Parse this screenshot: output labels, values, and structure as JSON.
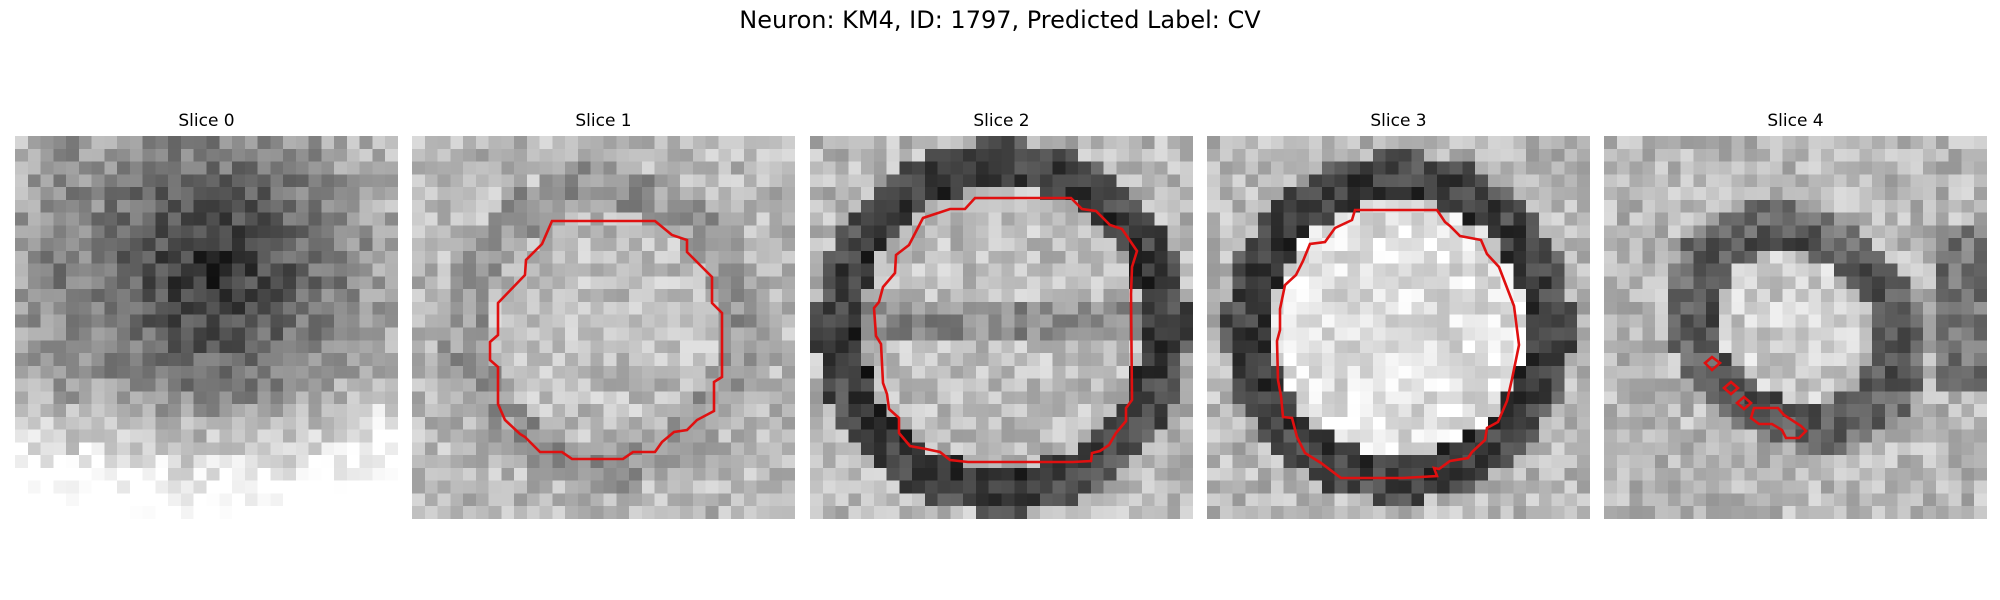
{
  "figure": {
    "title": "Neuron: KM4, ID: 1797, Predicted Label: CV"
  },
  "panels": [
    {
      "title": "Slice 0",
      "contour": false
    },
    {
      "title": "Slice 1",
      "contour": true
    },
    {
      "title": "Slice 2",
      "contour": true
    },
    {
      "title": "Slice 3",
      "contour": true
    },
    {
      "title": "Slice 4",
      "contour": true
    }
  ],
  "colors": {
    "contour": "#e01010",
    "background": "#ffffff"
  }
}
